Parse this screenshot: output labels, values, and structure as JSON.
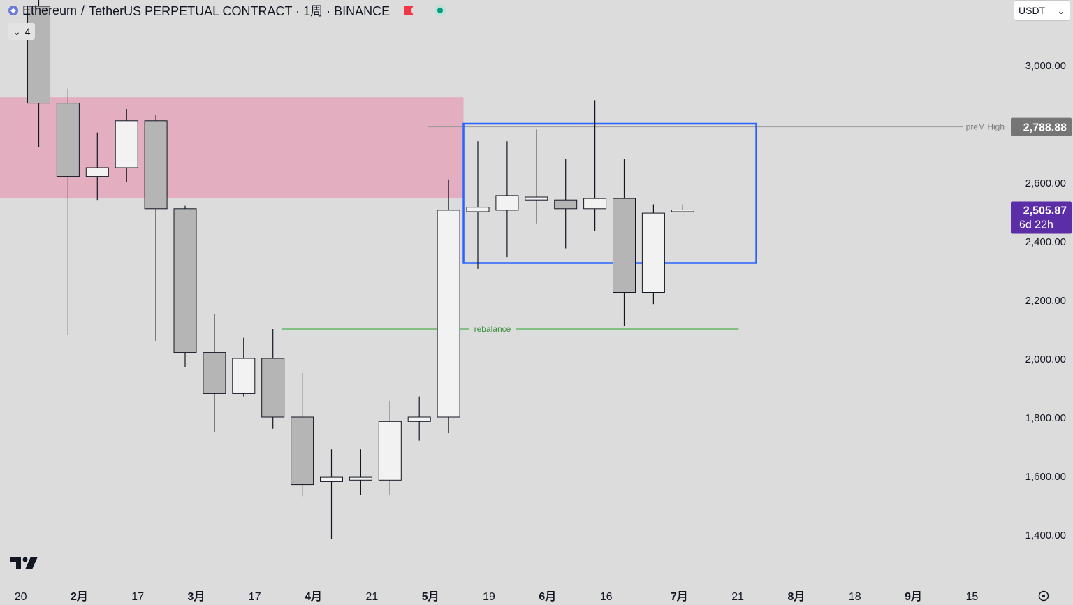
{
  "header": {
    "symbol": "Ethereum",
    "separator": "/",
    "title": "TetherUS PERPETUAL CONTRACT · 1周 · BINANCE",
    "coin_icon": "ethereum-icon",
    "flag_icon": "red-flag-icon",
    "status_icon": "market-status-icon",
    "indicator_count": "4"
  },
  "currency_select": {
    "value": "USDT"
  },
  "colors": {
    "background": "#dcdcdc",
    "up_candle": "#f2f2f2",
    "down_candle": "#b5b5b5",
    "supply_zone": "#e3aebf",
    "range_box": "#2962ff",
    "rebalance_line": "#4caf50",
    "prem_high_line": "#9a9a9a",
    "current_price_badge": "#5b2da6"
  },
  "chart_data": {
    "type": "candlestick",
    "title": "Ethereum / TetherUS PERPETUAL CONTRACT · 1周 · BINANCE",
    "interval": "1周",
    "y_range": [
      1320,
      3200
    ],
    "y_ticks": [
      {
        "value": 3000,
        "label": "3,000.00"
      },
      {
        "value": 2600,
        "label": "2,600.00"
      },
      {
        "value": 2400,
        "label": "2,400.00"
      },
      {
        "value": 2200,
        "label": "2,200.00"
      },
      {
        "value": 2000,
        "label": "2,000.00"
      },
      {
        "value": 1800,
        "label": "1,800.00"
      },
      {
        "value": 1600,
        "label": "1,600.00"
      },
      {
        "value": 1400,
        "label": "1,400.00"
      }
    ],
    "x_ticks": [
      {
        "index": -0.63,
        "label": "20",
        "bold": false
      },
      {
        "index": 1.37,
        "label": "2月",
        "bold": true
      },
      {
        "index": 3.37,
        "label": "17",
        "bold": false
      },
      {
        "index": 5.37,
        "label": "3月",
        "bold": true
      },
      {
        "index": 7.37,
        "label": "17",
        "bold": false
      },
      {
        "index": 9.37,
        "label": "4月",
        "bold": true
      },
      {
        "index": 11.37,
        "label": "21",
        "bold": false
      },
      {
        "index": 13.37,
        "label": "5月",
        "bold": true
      },
      {
        "index": 15.37,
        "label": "19",
        "bold": false
      },
      {
        "index": 17.37,
        "label": "6月",
        "bold": true
      },
      {
        "index": 19.37,
        "label": "16",
        "bold": false
      },
      {
        "index": 21.87,
        "label": "7月",
        "bold": true
      },
      {
        "index": 23.87,
        "label": "21",
        "bold": false
      },
      {
        "index": 25.87,
        "label": "8月",
        "bold": true
      },
      {
        "index": 27.87,
        "label": "18",
        "bold": false
      },
      {
        "index": 29.87,
        "label": "9月",
        "bold": true
      },
      {
        "index": 31.87,
        "label": "15",
        "bold": false
      }
    ],
    "candles": [
      {
        "o": 3200,
        "h": 3300,
        "l": 2720,
        "c": 2870
      },
      {
        "o": 2870,
        "h": 2920,
        "l": 2080,
        "c": 2620
      },
      {
        "o": 2620,
        "h": 2770,
        "l": 2540,
        "c": 2650
      },
      {
        "o": 2650,
        "h": 2850,
        "l": 2600,
        "c": 2810
      },
      {
        "o": 2810,
        "h": 2830,
        "l": 2060,
        "c": 2510
      },
      {
        "o": 2510,
        "h": 2520,
        "l": 1970,
        "c": 2020
      },
      {
        "o": 2020,
        "h": 2150,
        "l": 1750,
        "c": 1880
      },
      {
        "o": 1880,
        "h": 2070,
        "l": 1870,
        "c": 2000
      },
      {
        "o": 2000,
        "h": 2100,
        "l": 1760,
        "c": 1800
      },
      {
        "o": 1800,
        "h": 1950,
        "l": 1530,
        "c": 1570
      },
      {
        "o": 1580,
        "h": 1690,
        "l": 1385,
        "c": 1595
      },
      {
        "o": 1585,
        "h": 1690,
        "l": 1535,
        "c": 1595
      },
      {
        "o": 1585,
        "h": 1855,
        "l": 1535,
        "c": 1785
      },
      {
        "o": 1785,
        "h": 1870,
        "l": 1720,
        "c": 1800
      },
      {
        "o": 1800,
        "h": 2610,
        "l": 1745,
        "c": 2505
      },
      {
        "o": 2500,
        "h": 2740,
        "l": 2305,
        "c": 2515
      },
      {
        "o": 2505,
        "h": 2740,
        "l": 2345,
        "c": 2555
      },
      {
        "o": 2540,
        "h": 2780,
        "l": 2460,
        "c": 2550
      },
      {
        "o": 2540,
        "h": 2680,
        "l": 2375,
        "c": 2510
      },
      {
        "o": 2510,
        "h": 2880,
        "l": 2435,
        "c": 2545
      },
      {
        "o": 2545,
        "h": 2680,
        "l": 2110,
        "c": 2225
      },
      {
        "o": 2225,
        "h": 2525,
        "l": 2185,
        "c": 2495
      },
      {
        "o": 2500,
        "h": 2525,
        "l": 2500,
        "c": 2506
      }
    ],
    "zones": [
      {
        "type": "supply-zone",
        "from_index": -1.5,
        "to_index": 14.5,
        "top": 2890,
        "bottom": 2545
      }
    ],
    "boxes": [
      {
        "from_index": 14.5,
        "to_index": 24.5,
        "top": 2800,
        "bottom": 2325
      }
    ],
    "lines": [
      {
        "label": "preM High",
        "value": 2788.88,
        "value_label": "2,788.88",
        "from_index": 13.3
      },
      {
        "label": "rebalance",
        "value": 2100,
        "from_index": 8.3,
        "to_index": 23.9
      }
    ],
    "current_price": {
      "value": 2505.87,
      "label": "2,505.87",
      "countdown": "6d 22h"
    }
  }
}
